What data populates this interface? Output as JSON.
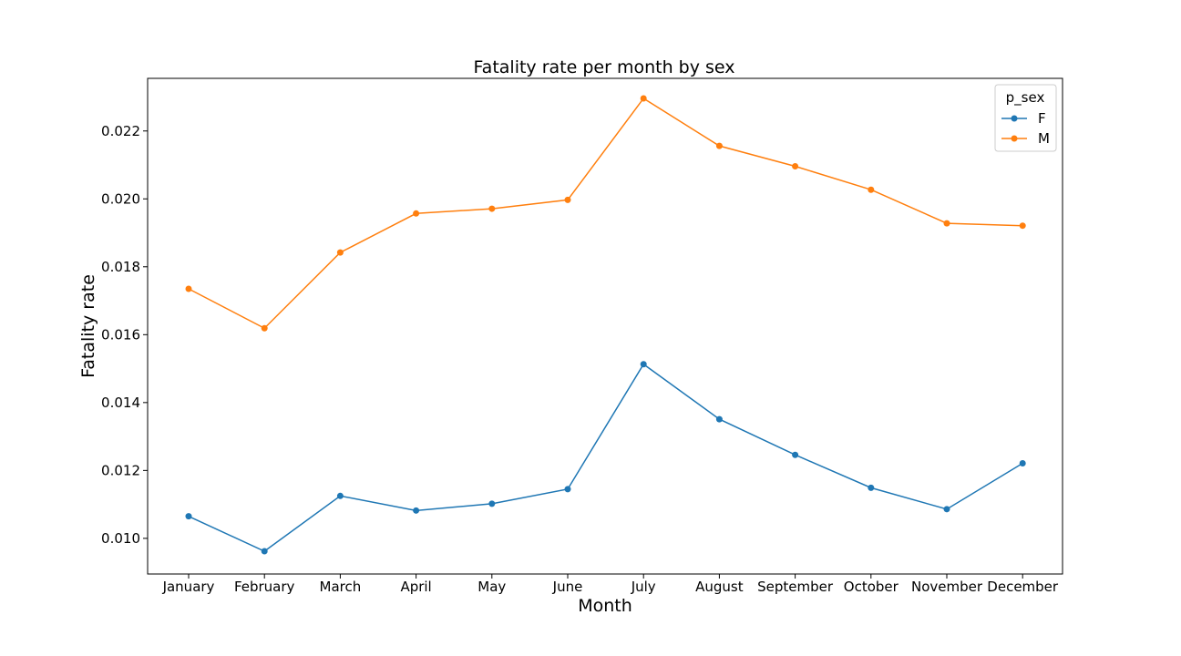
{
  "chart_data": {
    "type": "line",
    "title": "Fatality rate per month by sex",
    "xlabel": "Month",
    "ylabel": "Fatality rate",
    "categories": [
      "January",
      "February",
      "March",
      "April",
      "May",
      "June",
      "July",
      "August",
      "September",
      "October",
      "November",
      "December"
    ],
    "ylim": [
      0.00895,
      0.02355
    ],
    "yticks": [
      0.01,
      0.012,
      0.014,
      0.016,
      0.018,
      0.02,
      0.022
    ],
    "ytick_labels": [
      "0.010",
      "0.012",
      "0.014",
      "0.016",
      "0.018",
      "0.020",
      "0.022"
    ],
    "grid": false,
    "legend": {
      "title": "p_sex",
      "placement": "top-right"
    },
    "series": [
      {
        "name": "F",
        "color": "#1f77b4",
        "values": [
          0.01065,
          0.00962,
          0.01125,
          0.01082,
          0.01102,
          0.01145,
          0.01513,
          0.01351,
          0.01246,
          0.01149,
          0.01086,
          0.01221
        ]
      },
      {
        "name": "M",
        "color": "#ff7f0e",
        "values": [
          0.01735,
          0.01619,
          0.01842,
          0.01957,
          0.01971,
          0.01997,
          0.02296,
          0.02156,
          0.02096,
          0.02027,
          0.01928,
          0.01921
        ]
      }
    ]
  }
}
